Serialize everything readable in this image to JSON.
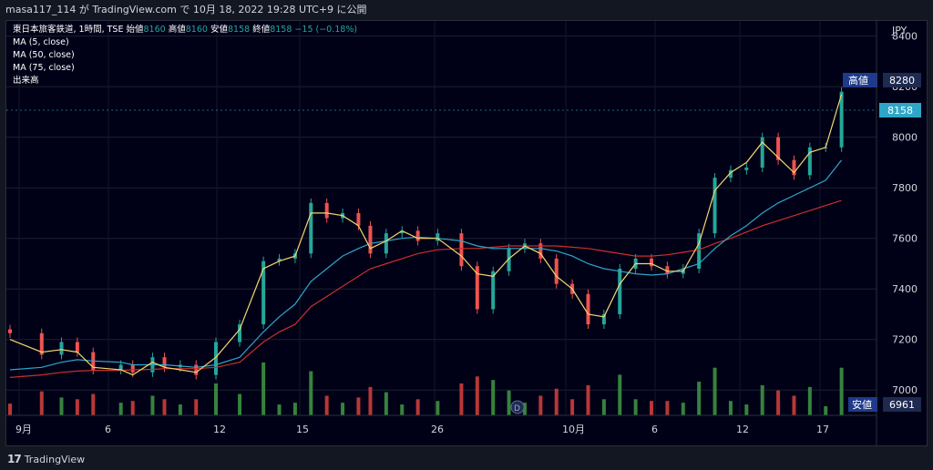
{
  "header": {
    "attribution": "masa117_114 が TradingView.com で 10月 18, 2022 19:28 UTC+9 に公開"
  },
  "legend": {
    "symbol": "東日本旅客鉄道, 1時間, TSE",
    "open_label": "始値",
    "open": "8160",
    "high_label": "高値",
    "high": "8160",
    "low_label": "安値",
    "low": "8158",
    "close_label": "終値",
    "close": "8158",
    "change": "−15 (−0.18%)",
    "indicators": [
      "MA (5, close)",
      "MA (50, close)",
      "MA (75, close)",
      "出来高"
    ]
  },
  "price_axis": {
    "currency": "JPY",
    "ticks": [
      "8400",
      "8200",
      "8000",
      "7800",
      "7600",
      "7400",
      "7200",
      "7000"
    ],
    "high_tag_label": "高値",
    "high_tag_value": "8280",
    "last_price": "8158",
    "low_tag_label": "安値",
    "low_tag_value": "6961"
  },
  "time_axis": {
    "ticks": [
      "9月",
      "6",
      "12",
      "15",
      "26",
      "10月",
      "6",
      "12",
      "17"
    ]
  },
  "footer": {
    "brand": "TradingView"
  },
  "colors": {
    "up": "#26a69a",
    "down": "#ef5350",
    "ma5": "#f5d76e",
    "ma50": "#2fa6c8",
    "ma75": "#c9302c",
    "vol_up": "#3f9a43",
    "vol_down": "#d9413c",
    "background": "#000117"
  },
  "chart_data": {
    "type": "candlestick",
    "interval": "1時間",
    "ylim": [
      6900,
      8460
    ],
    "x": [
      0,
      8,
      13,
      17,
      21,
      28,
      31,
      36,
      39,
      43,
      47,
      52,
      58,
      64,
      68,
      72,
      76,
      80,
      84,
      88,
      91,
      95,
      99,
      103,
      108,
      114
    ],
    "close": [
      7225,
      7140,
      7190,
      7150,
      7080,
      7100,
      7070,
      7130,
      7090,
      7100,
      7060,
      7190,
      7260,
      7510,
      7520,
      7540,
      7740,
      7680,
      7700,
      7650,
      7540,
      7620,
      7630,
      7590,
      7620,
      7490
    ],
    "ma5": [
      7200,
      7150,
      7160,
      7150,
      7090,
      7080,
      7060,
      7110,
      7090,
      7080,
      7070,
      7130,
      7240,
      7480,
      7510,
      7530,
      7700,
      7700,
      7690,
      7650,
      7560,
      7590,
      7630,
      7600,
      7600,
      7530
    ],
    "ma50": [
      7080,
      7090,
      7110,
      7120,
      7115,
      7110,
      7100,
      7100,
      7100,
      7095,
      7090,
      7100,
      7130,
      7230,
      7290,
      7340,
      7430,
      7480,
      7530,
      7560,
      7580,
      7590,
      7600,
      7605,
      7600,
      7590
    ],
    "ma75": [
      7050,
      7060,
      7070,
      7075,
      7078,
      7078,
      7080,
      7082,
      7085,
      7085,
      7085,
      7090,
      7110,
      7190,
      7230,
      7260,
      7330,
      7370,
      7410,
      7450,
      7480,
      7500,
      7520,
      7540,
      7555,
      7560
    ],
    "x2": [
      118,
      122,
      126,
      130,
      134,
      138,
      142,
      146,
      150,
      154,
      158,
      162,
      166,
      170,
      174,
      178,
      182,
      186,
      190,
      194,
      198,
      202,
      206,
      210
    ],
    "close2": [
      7320,
      7470,
      7560,
      7580,
      7520,
      7420,
      7380,
      7260,
      7300,
      7480,
      7520,
      7490,
      7460,
      7480,
      7620,
      7840,
      7870,
      7880,
      8000,
      7910,
      7850,
      7960,
      7960,
      8180
    ],
    "ma5_2": [
      7460,
      7450,
      7520,
      7570,
      7540,
      7450,
      7400,
      7300,
      7290,
      7420,
      7500,
      7500,
      7470,
      7470,
      7580,
      7790,
      7860,
      7900,
      7980,
      7920,
      7860,
      7940,
      7960,
      8170
    ],
    "ma50_2": [
      7570,
      7560,
      7560,
      7560,
      7560,
      7550,
      7530,
      7500,
      7480,
      7470,
      7460,
      7455,
      7460,
      7480,
      7500,
      7560,
      7610,
      7650,
      7700,
      7740,
      7770,
      7800,
      7830,
      7910
    ],
    "ma75_2": [
      7560,
      7565,
      7570,
      7570,
      7570,
      7570,
      7565,
      7560,
      7550,
      7540,
      7530,
      7530,
      7535,
      7545,
      7555,
      7580,
      7600,
      7625,
      7650,
      7670,
      7690,
      7710,
      7730,
      7750
    ]
  }
}
